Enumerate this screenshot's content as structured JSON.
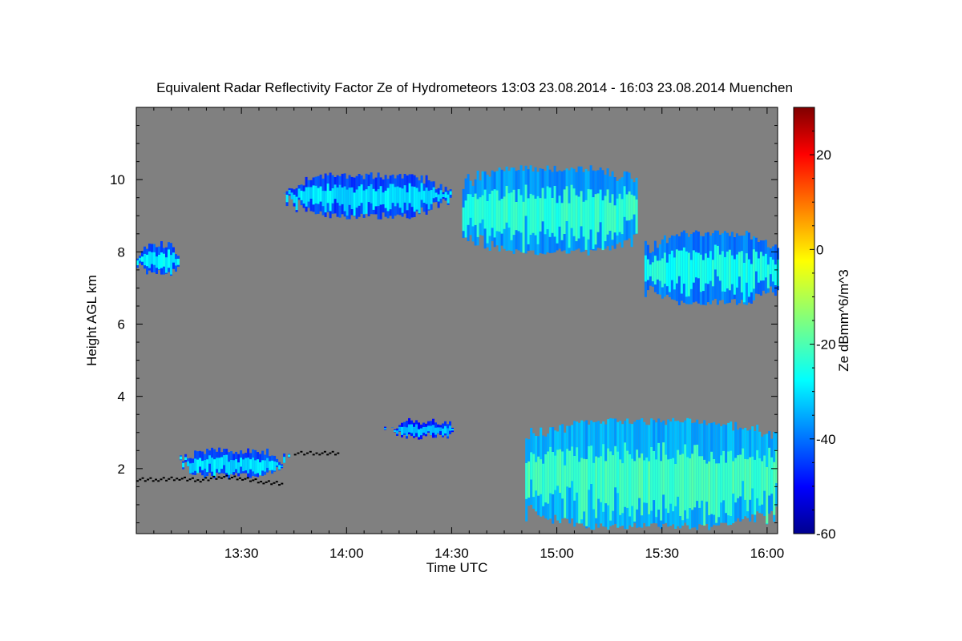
{
  "chart_data": {
    "type": "heatmap",
    "title": "Equivalent Radar Reflectivity Factor Ze of Hydrometeors   13:03 23.08.2014 - 16:03 23.08.2014 Muenchen",
    "xlabel": "Time UTC",
    "ylabel": "Height AGL km",
    "xlim_minutes": [
      780,
      963
    ],
    "ylim": [
      0.2,
      12.0
    ],
    "x_ticks": [
      {
        "value": 810,
        "label": "13:30"
      },
      {
        "value": 840,
        "label": "14:00"
      },
      {
        "value": 870,
        "label": "14:30"
      },
      {
        "value": 900,
        "label": "15:00"
      },
      {
        "value": 930,
        "label": "15:30"
      },
      {
        "value": 960,
        "label": "16:00"
      }
    ],
    "y_ticks": [
      {
        "value": 2,
        "label": "2"
      },
      {
        "value": 4,
        "label": "4"
      },
      {
        "value": 6,
        "label": "6"
      },
      {
        "value": 8,
        "label": "8"
      },
      {
        "value": 10,
        "label": "10"
      }
    ],
    "colorbar": {
      "label": "Ze dBmm^6/m^3",
      "range": [
        -60,
        30
      ],
      "ticks": [
        {
          "value": 20,
          "label": "20"
        },
        {
          "value": 0,
          "label": "0"
        },
        {
          "value": -20,
          "label": "-20"
        },
        {
          "value": -40,
          "label": "-40"
        },
        {
          "value": -60,
          "label": "-60"
        }
      ]
    },
    "background_color": "#808080",
    "regions": [
      {
        "name": "upper-cloud-west",
        "t_start": 780,
        "t_end": 792,
        "z_bottom": 7.3,
        "z_top": 8.3,
        "ze": -32
      },
      {
        "name": "upper-cirrus-band",
        "t_start": 822,
        "t_end": 870,
        "z_bottom": 8.9,
        "z_top": 10.2,
        "ze": -33
      },
      {
        "name": "upper-cirrus-main",
        "t_start": 873,
        "t_end": 923,
        "z_bottom": 7.9,
        "z_top": 10.4,
        "ze": -26
      },
      {
        "name": "upper-cirrus-east",
        "t_start": 925,
        "t_end": 963,
        "z_bottom": 6.5,
        "z_top": 8.6,
        "ze": -28
      },
      {
        "name": "low-cloud-west",
        "t_start": 791,
        "t_end": 824,
        "z_bottom": 1.7,
        "z_top": 2.6,
        "ze": -33
      },
      {
        "name": "mid-fragments",
        "t_start": 850,
        "t_end": 874,
        "z_bottom": 2.8,
        "z_top": 3.4,
        "ze": -36
      },
      {
        "name": "low-cloud-main",
        "t_start": 891,
        "t_end": 963,
        "z_bottom": 0.3,
        "z_top": 3.4,
        "ze": -24
      }
    ],
    "cloud_base_points": [
      {
        "t": 780,
        "z": 1.72
      },
      {
        "t": 786,
        "z": 1.72
      },
      {
        "t": 792,
        "z": 1.75
      },
      {
        "t": 798,
        "z": 1.7
      },
      {
        "t": 804,
        "z": 1.8
      },
      {
        "t": 810,
        "z": 1.75
      },
      {
        "t": 816,
        "z": 1.65
      },
      {
        "t": 822,
        "z": 1.6
      },
      {
        "t": 825,
        "z": 2.45
      },
      {
        "t": 832,
        "z": 2.45
      },
      {
        "t": 838,
        "z": 2.45
      }
    ]
  }
}
